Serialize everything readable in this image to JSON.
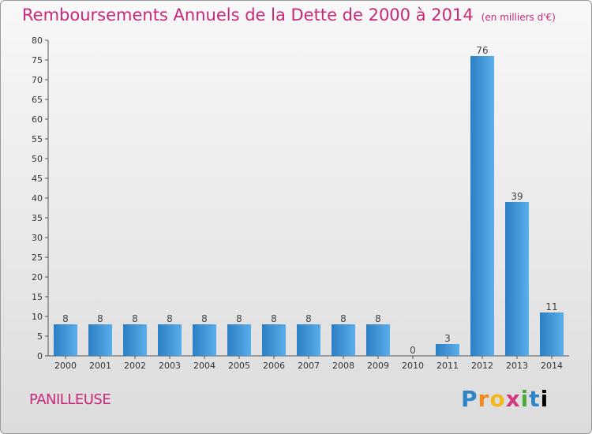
{
  "title": "Remboursements Annuels de la Dette de 2000 à 2014",
  "unit": "(en milliers d'€)",
  "place": "PANILLEUSE",
  "logo": [
    "P",
    "r",
    "o",
    "x",
    "i",
    "t",
    "i"
  ],
  "colors": {
    "title": "#c8287a",
    "bar_light": "#5aaee8",
    "bar_dark": "#2c7fc4",
    "axis": "#555555"
  },
  "chart_data": {
    "type": "bar",
    "title": "Remboursements Annuels de la Dette de 2000 à 2014",
    "ylabel": "",
    "xlabel": "",
    "categories": [
      "2000",
      "2001",
      "2002",
      "2003",
      "2004",
      "2005",
      "2006",
      "2007",
      "2008",
      "2009",
      "2010",
      "2011",
      "2012",
      "2013",
      "2014"
    ],
    "values": [
      8,
      8,
      8,
      8,
      8,
      8,
      8,
      8,
      8,
      8,
      0,
      3,
      76,
      39,
      11
    ],
    "ylim": [
      0,
      80
    ],
    "yticks": [
      0,
      5,
      10,
      15,
      20,
      25,
      30,
      35,
      40,
      45,
      50,
      55,
      60,
      65,
      70,
      75,
      80
    ],
    "grid": false,
    "data_labels": true
  }
}
